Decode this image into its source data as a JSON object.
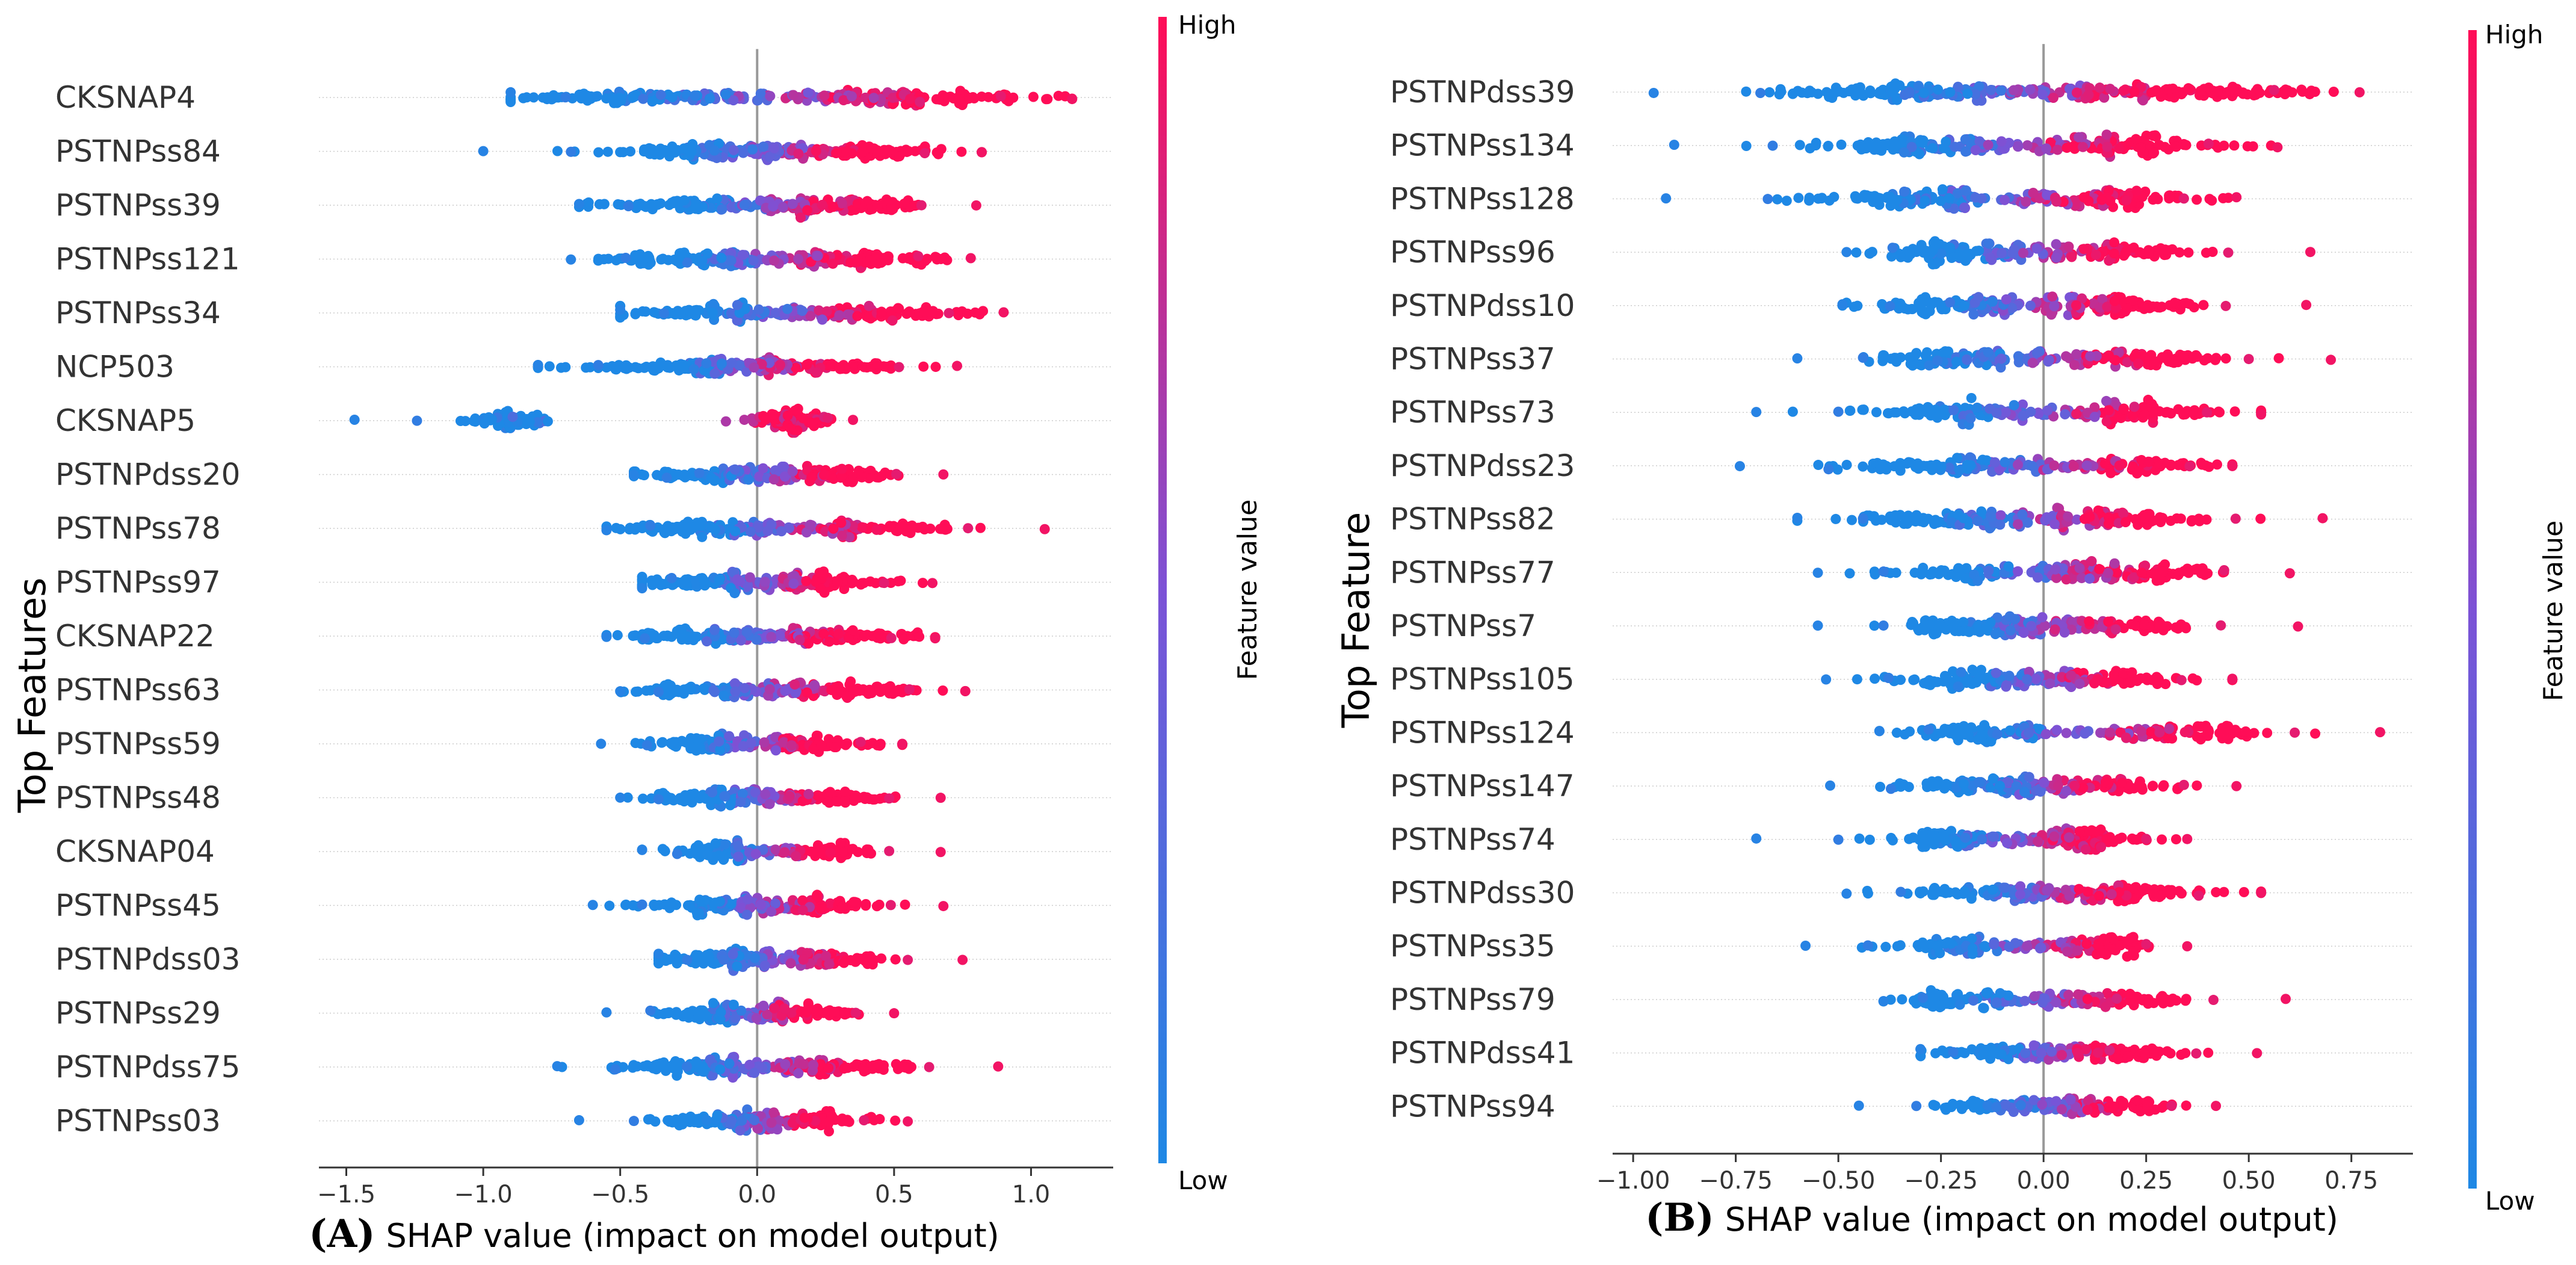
{
  "colors": {
    "low": "#1e88e5",
    "high": "#ff0d57",
    "grid": "#cccccc",
    "zero": "#999999",
    "axis": "#333333"
  },
  "chart_data": [
    {
      "type": "scatter",
      "subtype": "shap-beeswarm",
      "panel": "(A)",
      "xlabel": "SHAP value (impact on model output)",
      "ylabel": "Top Features",
      "colorbar": {
        "label": "Feature value",
        "high": "High",
        "low": "Low"
      },
      "xlim": [
        -1.6,
        1.3
      ],
      "xticks": [
        -1.5,
        -1.0,
        -0.5,
        0.0,
        0.5,
        1.0
      ],
      "xtick_labels": [
        "−1.5",
        "−1.0",
        "−0.5",
        "0.0",
        "0.5",
        "1.0"
      ],
      "features": [
        {
          "name": "CKSNAP4",
          "min": -0.9,
          "max": 1.15,
          "low_center": -0.4,
          "high_center": 0.5,
          "spread": 0.25,
          "density": 1.0
        },
        {
          "name": "PSTNPss84",
          "min": -1.0,
          "max": 0.82,
          "low_center": -0.2,
          "high_center": 0.3,
          "spread": 0.2,
          "density": 0.9
        },
        {
          "name": "PSTNPss39",
          "min": -0.65,
          "max": 0.8,
          "low_center": -0.2,
          "high_center": 0.3,
          "spread": 0.18,
          "density": 0.85
        },
        {
          "name": "PSTNPss121",
          "min": -0.68,
          "max": 0.78,
          "low_center": -0.18,
          "high_center": 0.3,
          "spread": 0.2,
          "density": 0.85
        },
        {
          "name": "PSTNPss34",
          "min": -0.5,
          "max": 0.9,
          "low_center": -0.1,
          "high_center": 0.4,
          "spread": 0.2,
          "density": 0.8
        },
        {
          "name": "NCP503",
          "min": -0.8,
          "max": 0.73,
          "low_center": -0.25,
          "high_center": 0.2,
          "spread": 0.2,
          "density": 0.8
        },
        {
          "name": "CKSNAP5",
          "min": -1.47,
          "max": 0.35,
          "low_center": -0.9,
          "high_center": 0.12,
          "spread": 0.08,
          "density": 0.6
        },
        {
          "name": "PSTNPdss20",
          "min": -0.45,
          "max": 0.68,
          "low_center": -0.15,
          "high_center": 0.25,
          "spread": 0.15,
          "density": 0.75
        },
        {
          "name": "PSTNPss78",
          "min": -0.55,
          "max": 1.05,
          "low_center": -0.15,
          "high_center": 0.35,
          "spread": 0.2,
          "density": 0.8
        },
        {
          "name": "PSTNPss97",
          "min": -0.42,
          "max": 0.64,
          "low_center": -0.15,
          "high_center": 0.2,
          "spread": 0.15,
          "density": 0.75
        },
        {
          "name": "CKSNAP22",
          "min": -0.55,
          "max": 0.65,
          "low_center": -0.2,
          "high_center": 0.25,
          "spread": 0.16,
          "density": 0.8
        },
        {
          "name": "PSTNPss63",
          "min": -0.5,
          "max": 0.76,
          "low_center": -0.15,
          "high_center": 0.25,
          "spread": 0.17,
          "density": 0.75
        },
        {
          "name": "PSTNPss59",
          "min": -0.57,
          "max": 0.53,
          "low_center": -0.15,
          "high_center": 0.15,
          "spread": 0.12,
          "density": 0.65
        },
        {
          "name": "PSTNPss48",
          "min": -0.5,
          "max": 0.67,
          "low_center": -0.15,
          "high_center": 0.2,
          "spread": 0.14,
          "density": 0.7
        },
        {
          "name": "CKSNAP04",
          "min": -0.42,
          "max": 0.67,
          "low_center": -0.1,
          "high_center": 0.2,
          "spread": 0.12,
          "density": 0.6
        },
        {
          "name": "PSTNPss45",
          "min": -0.6,
          "max": 0.68,
          "low_center": -0.15,
          "high_center": 0.2,
          "spread": 0.14,
          "density": 0.7
        },
        {
          "name": "PSTNPdss03",
          "min": -0.36,
          "max": 0.75,
          "low_center": -0.1,
          "high_center": 0.25,
          "spread": 0.14,
          "density": 0.7
        },
        {
          "name": "PSTNPss29",
          "min": -0.55,
          "max": 0.5,
          "low_center": -0.15,
          "high_center": 0.15,
          "spread": 0.12,
          "density": 0.65
        },
        {
          "name": "PSTNPdss75",
          "min": -0.73,
          "max": 0.88,
          "low_center": -0.2,
          "high_center": 0.25,
          "spread": 0.2,
          "density": 0.8
        },
        {
          "name": "PSTNPss03",
          "min": -0.65,
          "max": 0.55,
          "low_center": -0.15,
          "high_center": 0.15,
          "spread": 0.14,
          "density": 0.7
        }
      ]
    },
    {
      "type": "scatter",
      "subtype": "shap-beeswarm",
      "panel": "(B)",
      "xlabel": "SHAP value (impact on model output)",
      "ylabel": "Top Feature",
      "colorbar": {
        "label": "Feature value",
        "high": "High",
        "low": "Low"
      },
      "xlim": [
        -1.05,
        0.9
      ],
      "xticks": [
        -1.0,
        -0.75,
        -0.5,
        -0.25,
        0.0,
        0.25,
        0.5,
        0.75
      ],
      "xtick_labels": [
        "−1.00",
        "−0.75",
        "−0.50",
        "−0.25",
        "0.00",
        "0.25",
        "0.50",
        "0.75"
      ],
      "features": [
        {
          "name": "PSTNPdss39",
          "min": -0.95,
          "max": 0.77,
          "low_center": -0.3,
          "high_center": 0.25,
          "spread": 0.2,
          "density": 1.0
        },
        {
          "name": "PSTNPss134",
          "min": -0.9,
          "max": 0.57,
          "low_center": -0.3,
          "high_center": 0.15,
          "spread": 0.15,
          "density": 0.85
        },
        {
          "name": "PSTNPss128",
          "min": -0.92,
          "max": 0.47,
          "low_center": -0.3,
          "high_center": 0.15,
          "spread": 0.15,
          "density": 0.85
        },
        {
          "name": "PSTNPss96",
          "min": -0.48,
          "max": 0.65,
          "low_center": -0.2,
          "high_center": 0.15,
          "spread": 0.12,
          "density": 0.75
        },
        {
          "name": "PSTNPdss10",
          "min": -0.49,
          "max": 0.64,
          "low_center": -0.2,
          "high_center": 0.15,
          "spread": 0.12,
          "density": 0.75
        },
        {
          "name": "PSTNPss37",
          "min": -0.6,
          "max": 0.7,
          "low_center": -0.2,
          "high_center": 0.2,
          "spread": 0.13,
          "density": 0.75
        },
        {
          "name": "PSTNPss73",
          "min": -0.7,
          "max": 0.53,
          "low_center": -0.2,
          "high_center": 0.2,
          "spread": 0.13,
          "density": 0.75
        },
        {
          "name": "PSTNPdss23",
          "min": -0.74,
          "max": 0.46,
          "low_center": -0.2,
          "high_center": 0.2,
          "spread": 0.13,
          "density": 0.7
        },
        {
          "name": "PSTNPss82",
          "min": -0.6,
          "max": 0.68,
          "low_center": -0.2,
          "high_center": 0.15,
          "spread": 0.13,
          "density": 0.75
        },
        {
          "name": "PSTNPss77",
          "min": -0.55,
          "max": 0.6,
          "low_center": -0.15,
          "high_center": 0.2,
          "spread": 0.12,
          "density": 0.7
        },
        {
          "name": "PSTNPss7",
          "min": -0.55,
          "max": 0.62,
          "low_center": -0.15,
          "high_center": 0.15,
          "spread": 0.12,
          "density": 0.7
        },
        {
          "name": "PSTNPss105",
          "min": -0.53,
          "max": 0.46,
          "low_center": -0.15,
          "high_center": 0.15,
          "spread": 0.12,
          "density": 0.7
        },
        {
          "name": "PSTNPss124",
          "min": -0.4,
          "max": 0.82,
          "low_center": -0.1,
          "high_center": 0.3,
          "spread": 0.12,
          "density": 0.7
        },
        {
          "name": "PSTNPss147",
          "min": -0.52,
          "max": 0.47,
          "low_center": -0.15,
          "high_center": 0.15,
          "spread": 0.11,
          "density": 0.65
        },
        {
          "name": "PSTNPss74",
          "min": -0.7,
          "max": 0.35,
          "low_center": -0.2,
          "high_center": 0.1,
          "spread": 0.1,
          "density": 0.65
        },
        {
          "name": "PSTNPdss30",
          "min": -0.48,
          "max": 0.53,
          "low_center": -0.15,
          "high_center": 0.15,
          "spread": 0.12,
          "density": 0.65
        },
        {
          "name": "PSTNPss35",
          "min": -0.58,
          "max": 0.35,
          "low_center": -0.2,
          "high_center": 0.1,
          "spread": 0.1,
          "density": 0.6
        },
        {
          "name": "PSTNPss79",
          "min": -0.39,
          "max": 0.59,
          "low_center": -0.15,
          "high_center": 0.15,
          "spread": 0.11,
          "density": 0.6
        },
        {
          "name": "PSTNPdss41",
          "min": -0.3,
          "max": 0.52,
          "low_center": -0.1,
          "high_center": 0.15,
          "spread": 0.1,
          "density": 0.55
        },
        {
          "name": "PSTNPss94",
          "min": -0.45,
          "max": 0.42,
          "low_center": -0.1,
          "high_center": 0.15,
          "spread": 0.1,
          "density": 0.55
        }
      ]
    }
  ]
}
